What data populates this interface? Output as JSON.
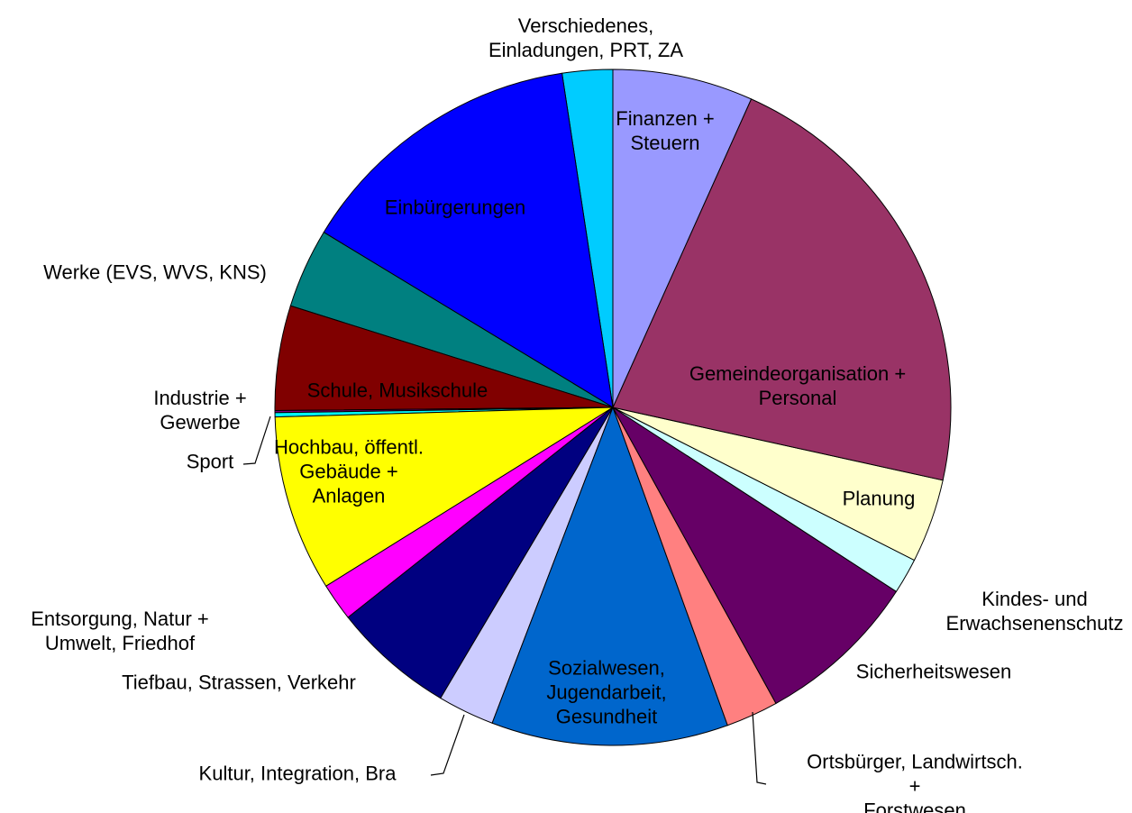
{
  "chart_data": {
    "type": "pie",
    "categories": [
      "Finanzen +\nSteuern",
      "Gemeindeorganisation +\nPersonal",
      "Planung",
      "Kindes- und\nErwachsenenschutz",
      "Sicherheitswesen",
      "Ortsbürger, Landwirtsch. +\nForstwesen",
      "Sozialwesen,\nJugendarbeit,\nGesundheit",
      "Kultur, Integration, Bra",
      "Tiefbau, Strassen, Verkehr",
      "Entsorgung, Natur +\nUmwelt, Friedhof",
      "Hochbau, öffentl.\nGebäude +\nAnlagen",
      "Sport",
      "Industrie +\nGewerbe",
      "Schule, Musikschule",
      "Werke (EVS, WVS, KNS)",
      "Einbürgerungen",
      "Verschiedenes,\nEinladungen, PRT, ZA"
    ],
    "values": [
      6.7,
      21.7,
      4.0,
      1.7,
      7.8,
      2.5,
      11.3,
      2.7,
      5.8,
      1.8,
      8.4,
      0.2,
      0.1,
      5.0,
      3.8,
      13.9,
      2.4
    ],
    "colors": [
      "#9999ff",
      "#993366",
      "#ffffcc",
      "#ccffff",
      "#660066",
      "#ff8080",
      "#0066cc",
      "#ccccff",
      "#000080",
      "#ff00ff",
      "#ffff00",
      "#00ffff",
      "#800080",
      "#800000",
      "#008080",
      "#0000ff",
      "#00ccff"
    ]
  }
}
